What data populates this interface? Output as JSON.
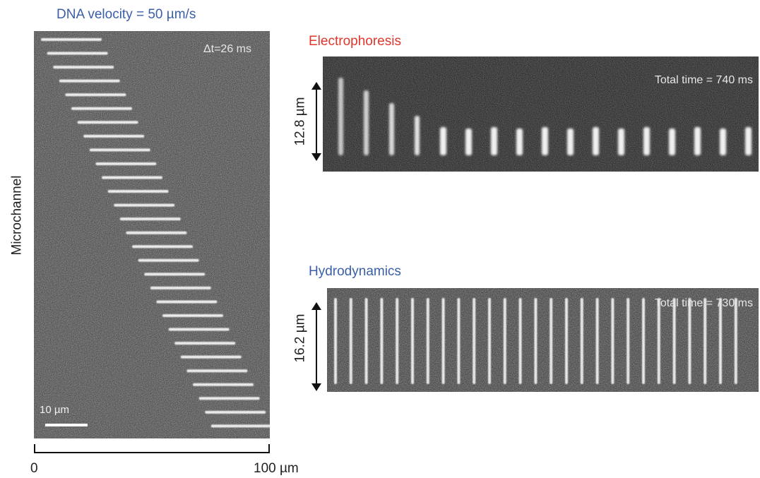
{
  "figure_title": "DNA velocity = 50 µm/s",
  "colors": {
    "figure_title": "#3a5fa8",
    "electrophoresis_title": "#e0362b",
    "hydrodynamics_title": "#3a5fa8",
    "panel_background": "#3a3a3a",
    "text_dark": "#222222"
  },
  "left_panel": {
    "time_interval": "Δt=26 ms",
    "scale_bar_label": "10 µm",
    "side_label": "Microchannel",
    "axis": {
      "min_label": "0",
      "max_label": "100 µm"
    }
  },
  "electrophoresis": {
    "title": "Electrophoresis",
    "total_time": "Total time = 740 ms",
    "height_label": "12.8 µm"
  },
  "hydrodynamics": {
    "title": "Hydrodynamics",
    "total_time": "Total time = 730 ms",
    "height_label": "16.2 µm"
  }
}
